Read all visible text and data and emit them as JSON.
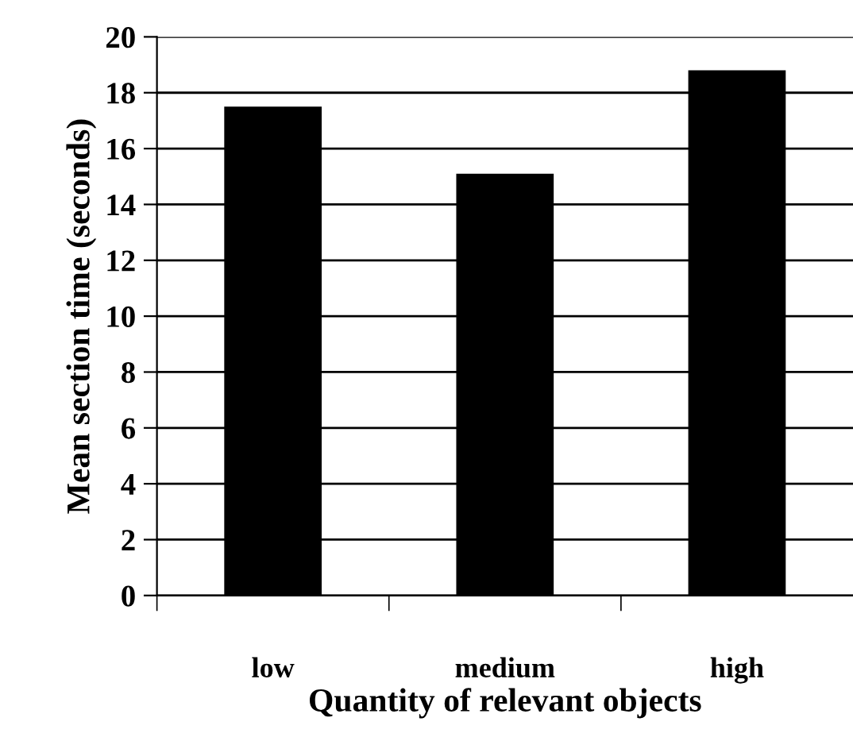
{
  "chart_data": {
    "type": "bar",
    "xlabel": "Quantity of relevant objects",
    "ylabel": "Mean section time (seconds)",
    "categories": [
      "low",
      "medium",
      "high"
    ],
    "values": [
      17.5,
      15.1,
      18.8
    ],
    "color": "#000000",
    "ylim": [
      0,
      20
    ],
    "yticks": [
      0,
      2,
      4,
      6,
      8,
      10,
      12,
      14,
      16,
      18,
      20
    ],
    "grid": "y",
    "legend": false
  }
}
